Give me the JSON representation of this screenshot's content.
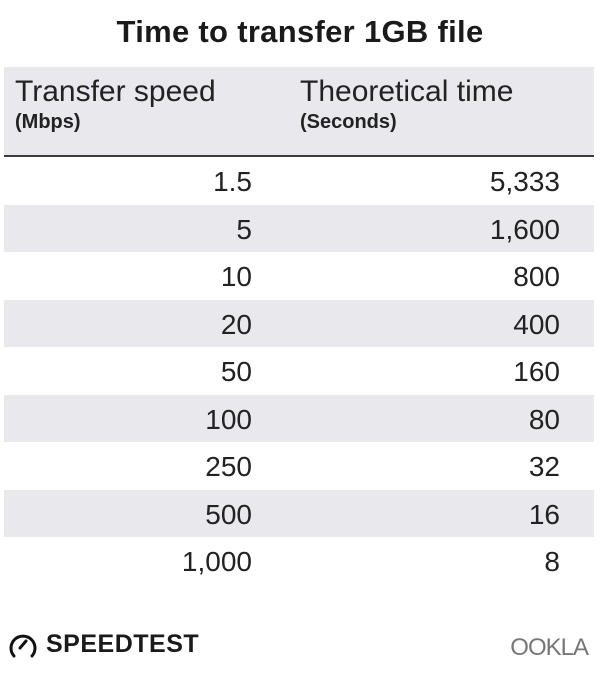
{
  "chart_data": {
    "type": "table",
    "title": "Time to transfer 1GB file",
    "columns": [
      {
        "label": "Transfer speed",
        "unit": "(Mbps)"
      },
      {
        "label": "Theoretical time",
        "unit": "(Seconds)"
      }
    ],
    "rows": [
      [
        "1.5",
        "5,333"
      ],
      [
        "5",
        "1,600"
      ],
      [
        "10",
        "800"
      ],
      [
        "20",
        "400"
      ],
      [
        "50",
        "160"
      ],
      [
        "100",
        "80"
      ],
      [
        "250",
        "32"
      ],
      [
        "500",
        "16"
      ],
      [
        "1,000",
        "8"
      ]
    ],
    "colors": {
      "stripe": "#e9e8ed",
      "text": "#222222"
    }
  },
  "footer": {
    "brand": "SPEEDTEST",
    "brand_icon": "speedometer-icon",
    "company": "OOKLA"
  }
}
